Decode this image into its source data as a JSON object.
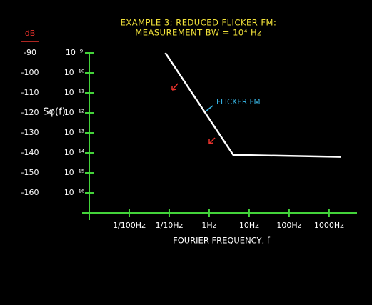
{
  "chart_data": {
    "type": "line",
    "title": "EXAMPLE 3; REDUCED FLICKER FM:",
    "subtitle": "MEASUREMENT BW = 10⁴ Hz",
    "xlabel": "FOURIER FREQUENCY, f",
    "ylabel": "dB",
    "y2label": "Sφ(f)",
    "xscale": "log",
    "y2scale": "log",
    "xlim": [
      0.001,
      5000
    ],
    "xticks": [
      {
        "value": 0.01,
        "label": "1/100Hz"
      },
      {
        "value": 0.1,
        "label": "1/10Hz"
      },
      {
        "value": 1,
        "label": "1Hz"
      },
      {
        "value": 10,
        "label": "10Hz"
      },
      {
        "value": 100,
        "label": "100Hz"
      },
      {
        "value": 1000,
        "label": "1000Hz"
      }
    ],
    "ylim": [
      -170,
      -90
    ],
    "yticks": [
      -90,
      -100,
      -110,
      -120,
      -130,
      -140,
      -150,
      -160
    ],
    "y2lim": [
      1e-17,
      1e-09
    ],
    "y2ticks": [
      {
        "value": 1e-09,
        "label": "10⁻⁹"
      },
      {
        "value": 1e-10,
        "label": "10⁻¹⁰"
      },
      {
        "value": 1e-11,
        "label": "10⁻¹¹"
      },
      {
        "value": 1e-12,
        "label": "10⁻¹²"
      },
      {
        "value": 1e-13,
        "label": "10⁻¹³"
      },
      {
        "value": 1e-14,
        "label": "10⁻¹⁴"
      },
      {
        "value": 1e-15,
        "label": "10⁻¹⁵"
      },
      {
        "value": 1e-16,
        "label": "10⁻¹⁶"
      }
    ],
    "x": [
      0.08,
      4,
      2000
    ],
    "values": [
      -90,
      -141,
      -142
    ],
    "color": "#ffffff",
    "axis_color": "#43d33a",
    "annotation": "FLICKER FM",
    "annotation_color": "#38b8e8"
  }
}
